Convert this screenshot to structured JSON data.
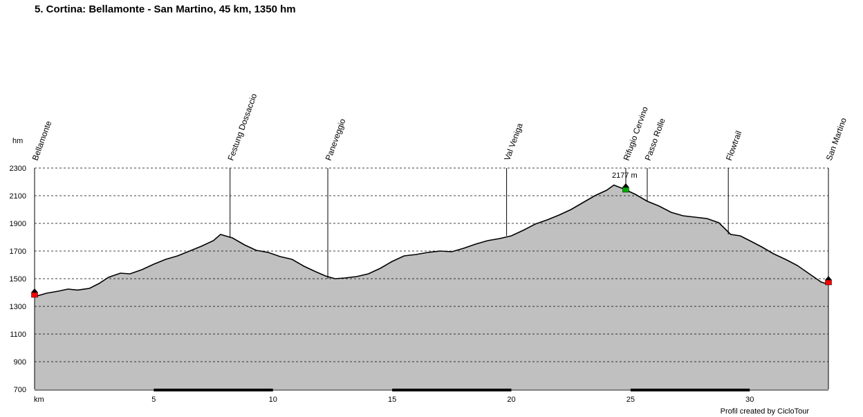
{
  "title": "5. Cortina: Bellamonte - San  Martino, 45 km, 1350 hm",
  "credit": "Profil created by CicloTour",
  "chart_data": {
    "type": "area",
    "ylabel": "hm",
    "xlabel": "km",
    "xlim": [
      0,
      33.3
    ],
    "ylim": [
      700,
      2300
    ],
    "yticks": [
      700,
      900,
      1100,
      1300,
      1500,
      1700,
      1900,
      2100,
      2300
    ],
    "xticks": [
      5,
      10,
      15,
      20,
      25,
      30
    ],
    "grid": "horizontal-dashed",
    "fill_color": "#c0c0c0",
    "line_color": "#000000",
    "peak_label": "2177 m",
    "peak_label_color": "#cc0000",
    "profile": {
      "x": [
        0,
        0.5,
        1.0,
        1.4,
        1.8,
        2.3,
        2.7,
        3.1,
        3.6,
        4.0,
        4.5,
        5.0,
        5.5,
        6.0,
        6.5,
        7.0,
        7.5,
        7.8,
        8.3,
        8.8,
        9.3,
        9.8,
        10.3,
        10.8,
        11.3,
        11.8,
        12.2,
        12.6,
        13.0,
        13.5,
        14.0,
        14.5,
        15.0,
        15.5,
        16.0,
        16.5,
        17.0,
        17.5,
        18.0,
        18.5,
        19.0,
        19.5,
        20.0,
        20.5,
        21.0,
        21.5,
        22.0,
        22.5,
        23.0,
        23.5,
        24.0,
        24.3,
        24.7,
        25.2,
        25.7,
        26.2,
        26.7,
        27.2,
        27.7,
        28.2,
        28.7,
        29.2,
        29.6,
        30.0,
        30.5,
        31.0,
        31.5,
        32.0,
        32.5,
        33.0,
        33.3
      ],
      "y": [
        1370,
        1395,
        1410,
        1425,
        1418,
        1430,
        1465,
        1510,
        1540,
        1535,
        1565,
        1605,
        1640,
        1665,
        1700,
        1735,
        1775,
        1820,
        1795,
        1745,
        1705,
        1690,
        1660,
        1640,
        1590,
        1550,
        1520,
        1500,
        1505,
        1515,
        1535,
        1575,
        1625,
        1665,
        1675,
        1690,
        1700,
        1695,
        1720,
        1750,
        1775,
        1790,
        1810,
        1850,
        1895,
        1925,
        1960,
        2000,
        2050,
        2100,
        2140,
        2177,
        2150,
        2110,
        2060,
        2025,
        1980,
        1955,
        1945,
        1935,
        1905,
        1820,
        1810,
        1775,
        1730,
        1680,
        1640,
        1595,
        1535,
        1475,
        1460
      ]
    },
    "waypoints": [
      {
        "name": "Bellamonte",
        "km": 0,
        "elev": 1370
      },
      {
        "name": "Festung Dossaccio",
        "km": 8.2,
        "elev": 1795
      },
      {
        "name": "Paneveggio",
        "km": 12.3,
        "elev": 1500
      },
      {
        "name": "Val Veniga",
        "km": 19.8,
        "elev": 1810
      },
      {
        "name": "Rifugio Cervino",
        "km": 24.8,
        "elev": 2145
      },
      {
        "name": "Passo Rolle",
        "km": 25.7,
        "elev": 2060
      },
      {
        "name": "Flowtrail",
        "km": 29.1,
        "elev": 1820
      },
      {
        "name": "San Martino",
        "km": 33.3,
        "elev": 1460
      }
    ],
    "markers": [
      {
        "km": 0,
        "elev": 1390,
        "type": "start",
        "color": "#ff0000"
      },
      {
        "km": 24.8,
        "elev": 2150,
        "type": "summit",
        "color": "#00aa00"
      },
      {
        "km": 33.3,
        "elev": 1480,
        "type": "end",
        "color": "#ff0000"
      }
    ]
  }
}
